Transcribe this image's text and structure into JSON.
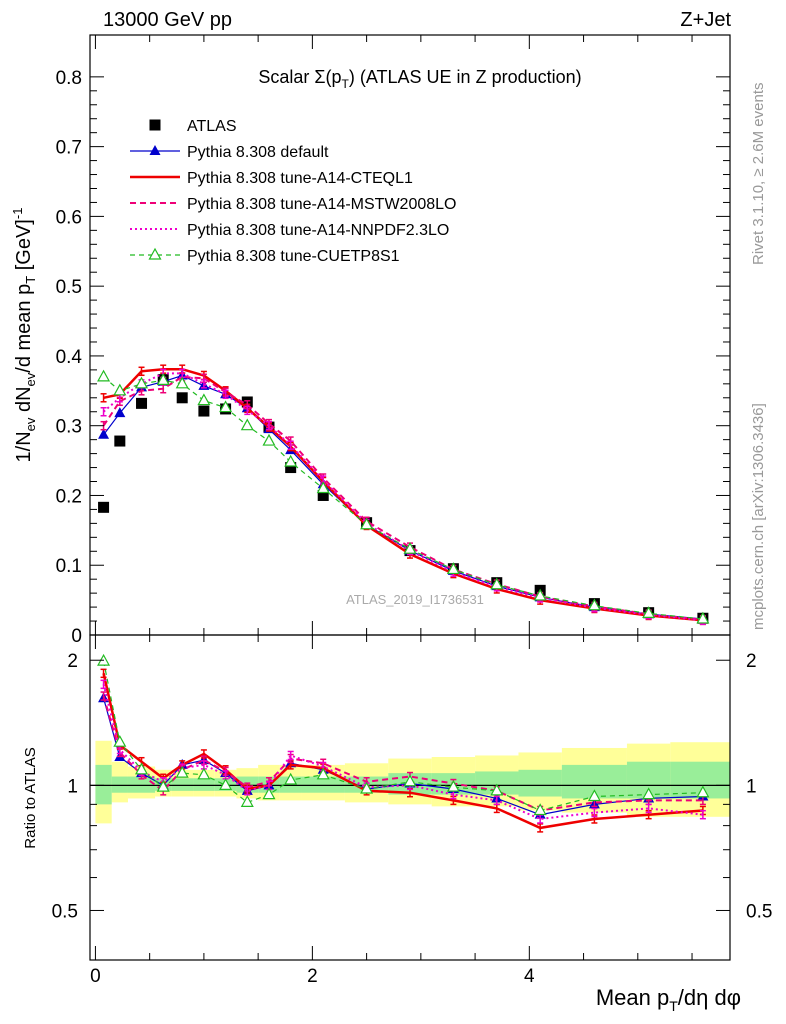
{
  "header": {
    "left": "13000 GeV pp",
    "right": "Z+Jet"
  },
  "side": {
    "rivet": "Rivet 3.1.10, ≥ 2.6M events",
    "mcplots": "mcplots.cern.ch [arXiv:1306.3436]"
  },
  "main": {
    "title": "Scalar Σ(p",
    "title_sub": "T",
    "title_rest": ") (ATLAS UE in Z production)",
    "ylabel": "1/N",
    "ylabel_sub1": "ev",
    "ylabel_mid": " dN",
    "ylabel_sub2": "ev",
    "ylabel_mid2": "/d mean p",
    "ylabel_sub3": "T",
    "ylabel_end": " [GeV]",
    "ylabel_sup": "-1",
    "watermark": "ATLAS_2019_I1736531",
    "yticks": [
      "0",
      "0.1",
      "0.2",
      "0.3",
      "0.4",
      "0.5",
      "0.6",
      "0.7",
      "0.8"
    ]
  },
  "ratio": {
    "ylabel": "Ratio to ATLAS",
    "yticks": [
      "0.5",
      "1",
      "2"
    ]
  },
  "xaxis": {
    "label": "Mean p",
    "label_sub": "T",
    "label_rest": "/dη dφ",
    "ticks": [
      "0",
      "2",
      "4"
    ]
  },
  "legend": [
    {
      "label": "ATLAS",
      "color": "#000000",
      "style": "square"
    },
    {
      "label": "Pythia 8.308 default",
      "color": "#0000cc",
      "style": "solid-triangle"
    },
    {
      "label": "Pythia 8.308 tune-A14-CTEQL1",
      "color": "#ee0000",
      "style": "solid-thick"
    },
    {
      "label": "Pythia 8.308 tune-A14-MSTW2008LO",
      "color": "#ee0077",
      "style": "dashed"
    },
    {
      "label": "Pythia 8.308 tune-A14-NNPDF2.3LO",
      "color": "#ee00cc",
      "style": "dotted"
    },
    {
      "label": "Pythia 8.308 tune-CUETP8S1",
      "color": "#22bb22",
      "style": "dashed-open-triangle"
    }
  ],
  "chart_data": {
    "type": "line",
    "title": "Scalar Σ(pT) (ATLAS UE in Z production)",
    "xlabel": "Mean pT/dη dφ",
    "ylabel": "1/Nev dNev/d mean pT [GeV]^-1",
    "xlim": [
      -0.05,
      5.85
    ],
    "ylim": [
      0,
      0.86
    ],
    "ratio_ylim": [
      0.38,
      2.3
    ],
    "ratio_scale": "log",
    "x": [
      0.075,
      0.225,
      0.425,
      0.625,
      0.8,
      1.0,
      1.2,
      1.4,
      1.6,
      1.8,
      2.1,
      2.5,
      2.9,
      3.3,
      3.7,
      4.1,
      4.6,
      5.1,
      5.6
    ],
    "series": [
      {
        "name": "ATLAS",
        "values": [
          0.183,
          0.278,
          0.332,
          0.366,
          0.34,
          0.321,
          0.324,
          0.334,
          0.298,
          0.24,
          0.2,
          0.161,
          0.121,
          0.095,
          0.075,
          0.064,
          0.045,
          0.032,
          0.024
        ]
      },
      {
        "name": "Pythia 8.308 default",
        "values": [
          0.287,
          0.318,
          0.355,
          0.363,
          0.372,
          0.357,
          0.345,
          0.325,
          0.295,
          0.265,
          0.216,
          0.158,
          0.121,
          0.092,
          0.07,
          0.054,
          0.04,
          0.03,
          0.023
        ]
      },
      {
        "name": "Pythia 8.308 tune-A14-CTEQL1",
        "values": [
          0.34,
          0.345,
          0.378,
          0.381,
          0.381,
          0.372,
          0.35,
          0.325,
          0.298,
          0.27,
          0.22,
          0.157,
          0.116,
          0.088,
          0.066,
          0.05,
          0.038,
          0.028,
          0.021
        ]
      },
      {
        "name": "Pythia 8.308 tune-A14-MSTW2008LO",
        "values": [
          0.3,
          0.335,
          0.35,
          0.353,
          0.37,
          0.368,
          0.348,
          0.33,
          0.303,
          0.278,
          0.225,
          0.163,
          0.126,
          0.094,
          0.073,
          0.055,
          0.041,
          0.03,
          0.022
        ]
      },
      {
        "name": "Pythia 8.308 tune-A14-NNPDF2.3LO",
        "values": [
          0.32,
          0.34,
          0.36,
          0.375,
          0.375,
          0.36,
          0.345,
          0.322,
          0.3,
          0.272,
          0.222,
          0.16,
          0.121,
          0.09,
          0.069,
          0.053,
          0.039,
          0.029,
          0.021
        ]
      },
      {
        "name": "Pythia 8.308 tune-CUETP8S1",
        "values": [
          0.37,
          0.35,
          0.36,
          0.365,
          0.36,
          0.336,
          0.326,
          0.3,
          0.278,
          0.248,
          0.21,
          0.158,
          0.123,
          0.094,
          0.072,
          0.056,
          0.042,
          0.031,
          0.023
        ]
      }
    ],
    "ratio_series": [
      {
        "name": "Pythia 8.308 default",
        "values": [
          1.62,
          1.17,
          1.07,
          1.0,
          1.12,
          1.15,
          1.07,
          0.97,
          1.0,
          1.13,
          1.09,
          0.98,
          1.01,
          0.98,
          0.93,
          0.85,
          0.9,
          0.93,
          0.94
        ]
      },
      {
        "name": "Pythia 8.308 tune-A14-CTEQL1",
        "values": [
          1.86,
          1.25,
          1.14,
          1.04,
          1.12,
          1.19,
          1.09,
          0.98,
          1.0,
          1.12,
          1.1,
          0.97,
          0.96,
          0.92,
          0.88,
          0.79,
          0.83,
          0.85,
          0.87
        ]
      },
      {
        "name": "Pythia 8.308 tune-A14-MSTW2008LO",
        "values": [
          1.64,
          1.2,
          1.06,
          0.97,
          1.09,
          1.15,
          1.08,
          0.99,
          1.02,
          1.16,
          1.13,
          1.02,
          1.05,
          1.01,
          0.97,
          0.87,
          0.91,
          0.92,
          0.92
        ]
      },
      {
        "name": "Pythia 8.308 tune-A14-NNPDF2.3LO",
        "values": [
          1.75,
          1.22,
          1.08,
          1.02,
          1.1,
          1.12,
          1.06,
          0.97,
          1.0,
          1.18,
          1.11,
          0.99,
          1.0,
          0.95,
          0.92,
          0.83,
          0.86,
          0.88,
          0.85
        ]
      },
      {
        "name": "Pythia 8.308 tune-CUETP8S1",
        "values": [
          1.99,
          1.27,
          1.09,
          0.99,
          1.07,
          1.06,
          1.0,
          0.91,
          0.95,
          1.03,
          1.06,
          0.98,
          1.02,
          0.99,
          0.97,
          0.87,
          0.94,
          0.95,
          0.96
        ]
      }
    ],
    "band_edges": [
      0.0,
      0.15,
      0.3,
      0.55,
      0.7,
      0.9,
      1.1,
      1.3,
      1.5,
      1.7,
      1.9,
      2.3,
      2.7,
      3.1,
      3.5,
      3.9,
      4.3,
      4.9,
      5.3,
      5.85
    ],
    "band_inner": [
      [
        0.9,
        1.12
      ],
      [
        0.96,
        1.05
      ],
      [
        0.96,
        1.05
      ],
      [
        0.97,
        1.04
      ],
      [
        0.97,
        1.04
      ],
      [
        0.97,
        1.04
      ],
      [
        0.97,
        1.04
      ],
      [
        0.96,
        1.05
      ],
      [
        0.96,
        1.05
      ],
      [
        0.96,
        1.05
      ],
      [
        0.96,
        1.05
      ],
      [
        0.96,
        1.05
      ],
      [
        0.95,
        1.07
      ],
      [
        0.95,
        1.07
      ],
      [
        0.95,
        1.08
      ],
      [
        0.94,
        1.09
      ],
      [
        0.93,
        1.12
      ],
      [
        0.93,
        1.14
      ],
      [
        0.93,
        1.14
      ]
    ],
    "band_outer": [
      [
        0.81,
        1.28
      ],
      [
        0.91,
        1.14
      ],
      [
        0.93,
        1.11
      ],
      [
        0.94,
        1.09
      ],
      [
        0.94,
        1.09
      ],
      [
        0.94,
        1.09
      ],
      [
        0.94,
        1.09
      ],
      [
        0.93,
        1.1
      ],
      [
        0.92,
        1.12
      ],
      [
        0.92,
        1.12
      ],
      [
        0.92,
        1.12
      ],
      [
        0.91,
        1.13
      ],
      [
        0.9,
        1.16
      ],
      [
        0.89,
        1.17
      ],
      [
        0.89,
        1.18
      ],
      [
        0.87,
        1.2
      ],
      [
        0.86,
        1.23
      ],
      [
        0.84,
        1.26
      ],
      [
        0.84,
        1.27
      ]
    ]
  }
}
